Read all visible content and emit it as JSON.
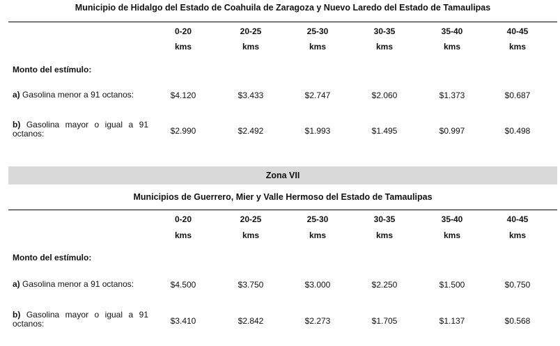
{
  "section1": {
    "title": "Municipio de Hidalgo del Estado de Coahuila de Zaragoza y Nuevo Laredo del Estado de Tamaulipas",
    "ranges": [
      "0-20",
      "20-25",
      "25-30",
      "30-35",
      "35-40",
      "40-45"
    ],
    "unit": "kms",
    "monto_label": "Monto del estímulo:",
    "rows": [
      {
        "letter": "a)",
        "label": "Gasolina menor a 91 octanos:",
        "values": [
          "$4.120",
          "$3.433",
          "$2.747",
          "$2.060",
          "$1.373",
          "$0.687"
        ]
      },
      {
        "letter": "b)",
        "label": "Gasolina mayor o igual a 91 octanos:",
        "values": [
          "$2.990",
          "$2.492",
          "$1.993",
          "$1.495",
          "$0.997",
          "$0.498"
        ]
      }
    ]
  },
  "section2": {
    "zone": "Zona VII",
    "title": "Municipios de Guerrero, Mier y Valle Hermoso del Estado de Tamaulipas",
    "ranges": [
      "0-20",
      "20-25",
      "25-30",
      "30-35",
      "35-40",
      "40-45"
    ],
    "unit": "kms",
    "monto_label": "Monto del estímulo:",
    "rows": [
      {
        "letter": "a)",
        "label": "Gasolina menor a 91 octanos:",
        "values": [
          "$4.500",
          "$3.750",
          "$3.000",
          "$2.250",
          "$1.500",
          "$0.750"
        ]
      },
      {
        "letter": "b)",
        "label": "Gasolina mayor o igual a 91 octanos:",
        "values": [
          "$3.410",
          "$2.842",
          "$2.273",
          "$1.705",
          "$1.137",
          "$0.568"
        ]
      }
    ]
  }
}
